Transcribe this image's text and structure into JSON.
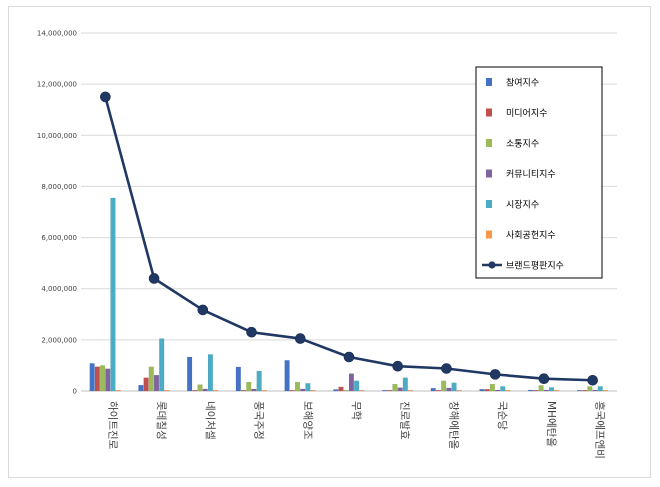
{
  "chart_data": {
    "type": "bar",
    "title": "",
    "xlabel": "",
    "ylabel": "",
    "ylim": [
      0,
      14000000
    ],
    "y_ticks": [
      "0",
      "2,000,000",
      "4,000,000",
      "6,000,000",
      "8,000,000",
      "10,000,000",
      "12,000,000",
      "14,000,000"
    ],
    "grid": true,
    "legend_position": "top-right",
    "categories": [
      "하이트진로",
      "롯데칠성",
      "네이처셀",
      "풍국주정",
      "보해양조",
      "무학",
      "진로발효",
      "창해에탄올",
      "국순당",
      "MH에탄올",
      "흥국에프엔비"
    ],
    "series": [
      {
        "name": "참여지수",
        "kind": "bar",
        "color": "#4472c4",
        "values": [
          1080000,
          230000,
          1330000,
          940000,
          1200000,
          60000,
          30000,
          110000,
          70000,
          40000,
          30000
        ]
      },
      {
        "name": "미디어지수",
        "kind": "bar",
        "color": "#c0504d",
        "values": [
          950000,
          520000,
          20000,
          20000,
          20000,
          160000,
          20000,
          30000,
          70000,
          20000,
          20000
        ]
      },
      {
        "name": "소통지수",
        "kind": "bar",
        "color": "#9bbb59",
        "values": [
          1000000,
          950000,
          250000,
          350000,
          350000,
          30000,
          270000,
          400000,
          270000,
          220000,
          180000
        ]
      },
      {
        "name": "커뮤니티지수",
        "kind": "bar",
        "color": "#8064a2",
        "values": [
          870000,
          620000,
          80000,
          80000,
          80000,
          680000,
          130000,
          120000,
          40000,
          40000,
          40000
        ]
      },
      {
        "name": "시장지수",
        "kind": "bar",
        "color": "#4bacc6",
        "values": [
          7550000,
          2050000,
          1430000,
          780000,
          300000,
          400000,
          520000,
          320000,
          180000,
          140000,
          180000
        ]
      },
      {
        "name": "사회공헌지수",
        "kind": "bar",
        "color": "#f79646",
        "values": [
          30000,
          30000,
          30000,
          30000,
          30000,
          30000,
          30000,
          30000,
          30000,
          30000,
          30000
        ]
      },
      {
        "name": "브랜드평판지수",
        "kind": "line",
        "color": "#1f3864",
        "values": [
          11500000,
          4400000,
          3170000,
          2300000,
          2050000,
          1330000,
          970000,
          880000,
          650000,
          480000,
          420000
        ]
      }
    ]
  }
}
